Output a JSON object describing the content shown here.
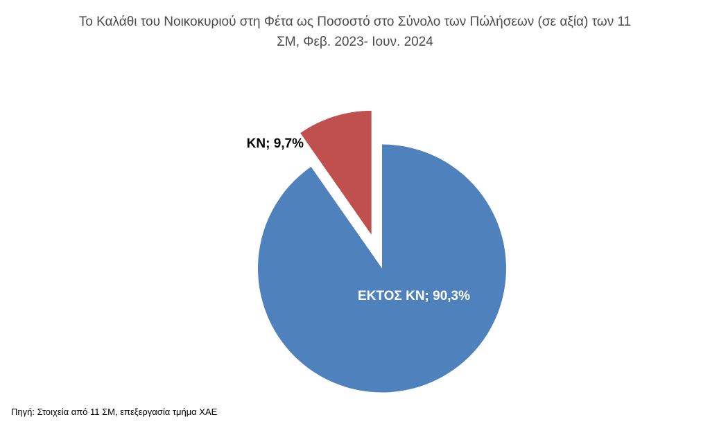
{
  "title_display": {
    "line1": "Το Καλάθι του Νοικοκυριού στη Φέτα ως Ποσοστό στο Σύνολο των Πώλήσεων (σε αξία) των 11",
    "line2": "ΣΜ, Φεβ. 2023- Ιουν. 2024"
  },
  "chart_data": {
    "type": "pie",
    "title": "Το Καλάθι του Νοικοκυριού στη Φέτα ως Ποσοστό στο Σύνολο των Πώλήσεων (σε αξία) των 11 ΣΜ, Φεβ. 2023- Ιουν. 2024",
    "categories": [
      "ΚΝ",
      "ΕΚΤΟΣ ΚΝ"
    ],
    "values": [
      9.7,
      90.3
    ],
    "labels": [
      "ΚΝ; 9,7%",
      "ΕΚΤΟΣ ΚΝ; 90,3%"
    ],
    "colors": [
      "#C0504D",
      "#4F81BD"
    ],
    "label_text_colors": [
      "#000000",
      "#FFFFFF"
    ],
    "exploded": [
      true,
      false
    ],
    "legend": "none",
    "background": "#FFFFFF",
    "layout": {
      "start_angle": "12 o'clock",
      "direction": "clockwise",
      "first_drawn_slice": "ΕΚΤΟΣ ΚΝ",
      "exploded_slice_direction": "upper-left"
    }
  },
  "source_note": "Πηγή: Στοιχεία από 11 ΣΜ, επεξεργασία τμήμα ΧΑΕ"
}
